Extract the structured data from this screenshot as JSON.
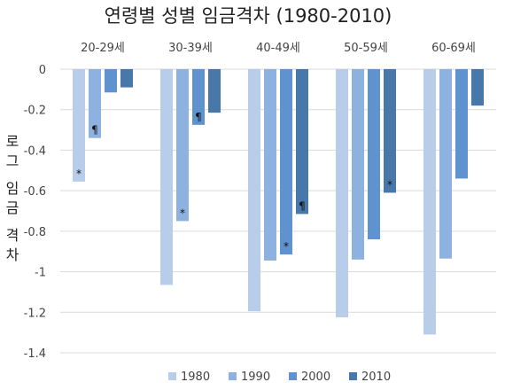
{
  "chart_data": {
    "type": "bar",
    "title": "연령별 성별 임금격차 (1980-2010)",
    "ylabel": "로그 임금 격차",
    "xlabel": "",
    "categories": [
      "20-29세",
      "30-39세",
      "40-49세",
      "50-59세",
      "60-69세"
    ],
    "series": [
      {
        "name": "1980",
        "color": "#b7cde9",
        "values": [
          -0.555,
          -1.065,
          -1.195,
          -1.225,
          -1.31
        ]
      },
      {
        "name": "1990",
        "color": "#8eb2df",
        "values": [
          -0.34,
          -0.75,
          -0.945,
          -0.94,
          -0.935
        ]
      },
      {
        "name": "2000",
        "color": "#5f93cf",
        "values": [
          -0.115,
          -0.275,
          -0.915,
          -0.84,
          -0.54
        ]
      },
      {
        "name": "2010",
        "color": "#4878aa",
        "values": [
          -0.09,
          -0.215,
          -0.715,
          -0.61,
          -0.18
        ]
      }
    ],
    "ylim": [
      -1.4,
      0
    ],
    "yticks": [
      0,
      -0.2,
      -0.4,
      -0.6,
      -0.8,
      -1,
      -1.2,
      -1.4
    ],
    "ytick_labels": [
      "0",
      "-0.2",
      "-0.4",
      "-0.6",
      "-0.8",
      "-1",
      "-1.2",
      "-1.4"
    ],
    "grid": true,
    "legend_position": "bottom",
    "annotations": [
      {
        "category": 0,
        "series": 0,
        "text": "*"
      },
      {
        "category": 0,
        "series": 1,
        "text": "¶"
      },
      {
        "category": 1,
        "series": 1,
        "text": "*"
      },
      {
        "category": 1,
        "series": 2,
        "text": "¶"
      },
      {
        "category": 2,
        "series": 2,
        "text": "*"
      },
      {
        "category": 2,
        "series": 3,
        "text": "¶"
      },
      {
        "category": 3,
        "series": 3,
        "text": "*"
      }
    ]
  }
}
